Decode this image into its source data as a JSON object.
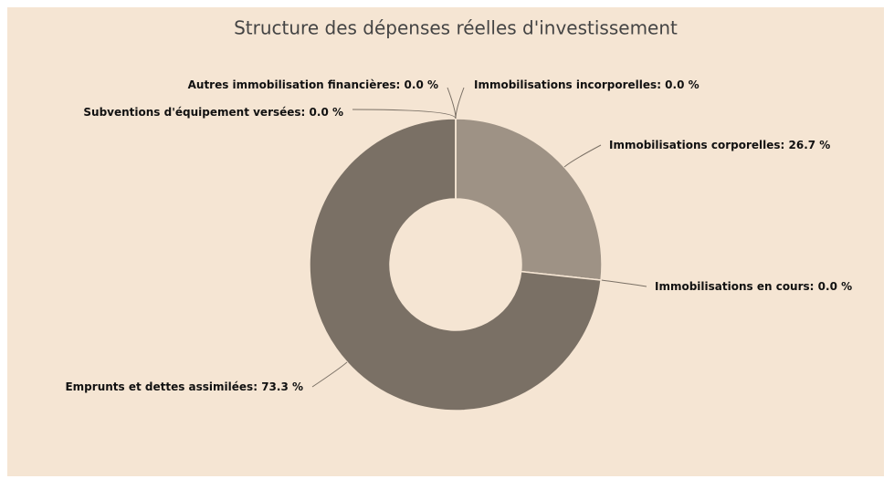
{
  "chart_data": {
    "type": "donut",
    "title": "Structure des dépenses réelles d'investissement",
    "categories": [
      "Immobilisations incorporelles",
      "Immobilisations corporelles",
      "Immobilisations en cours",
      "Emprunts et dettes assimilées",
      "Subventions d'équipement versées",
      "Autres immobilisation financières"
    ],
    "values": [
      0.0,
      26.7,
      0.0,
      73.3,
      0.0,
      0.0
    ],
    "value_labels": [
      "0.0 %",
      "26.7 %",
      "0.0 %",
      "73.3 %",
      "0.0 %",
      "0.0 %"
    ],
    "colors": [
      "#b5aa9c",
      "#9e9285",
      "#8c8276",
      "#7a7065",
      "#6c6258",
      "#5e554c"
    ]
  }
}
